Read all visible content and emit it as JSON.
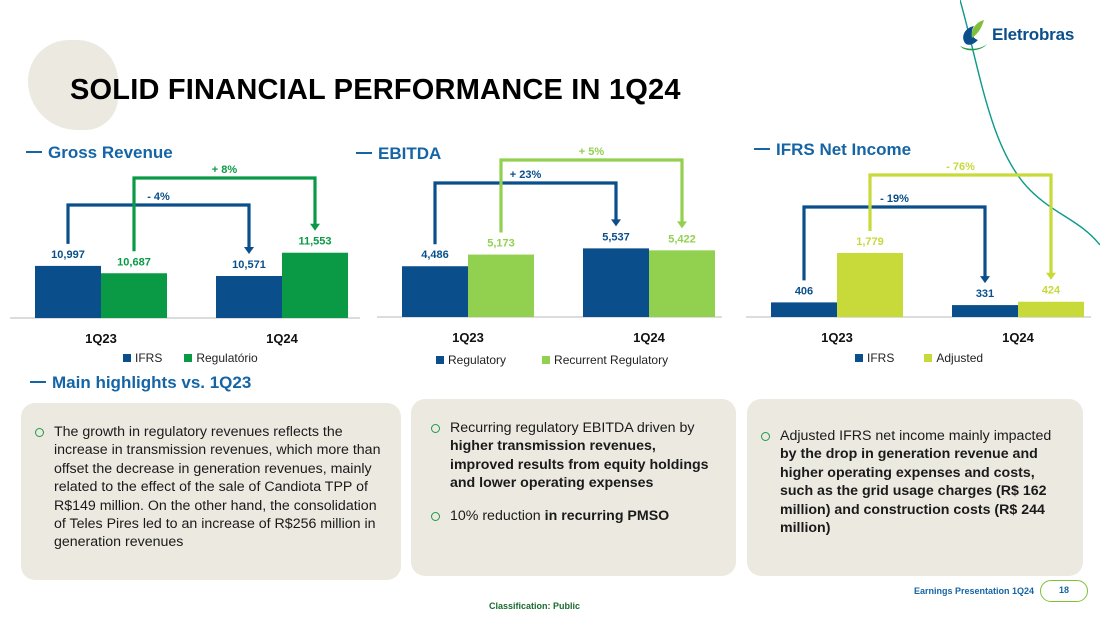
{
  "brand": {
    "name": "Eletrobras"
  },
  "title": "SOLID FINANCIAL PERFORMANCE IN 1Q24",
  "sections": {
    "gross": "Gross Revenue",
    "ebitda": "EBITDA",
    "income": "IFRS Net Income",
    "highlights": "Main highlights vs. 1Q23"
  },
  "chart_data": [
    {
      "type": "bar",
      "categories": [
        "1Q23",
        "1Q24"
      ],
      "series": [
        {
          "name": "IFRS",
          "values": [
            10997,
            10571
          ],
          "labels": [
            "10,997",
            "10,571"
          ],
          "color": "#0a4f8c"
        },
        {
          "name": "Regulatório",
          "values": [
            10687,
            11553
          ],
          "labels": [
            "10,687",
            "11,553"
          ],
          "color": "#0a9a46"
        }
      ],
      "ylim": [
        8800,
        12300
      ],
      "annotations": [
        {
          "text": "- 4%",
          "series": 0,
          "color": "#0a4f8c"
        },
        {
          "text": "+ 8%",
          "series": 1,
          "color": "#0a9a46"
        }
      ]
    },
    {
      "type": "bar",
      "categories": [
        "1Q23",
        "1Q24"
      ],
      "series": [
        {
          "name": "Regulatory",
          "values": [
            4486,
            5537
          ],
          "labels": [
            "4,486",
            "5,537"
          ],
          "color": "#0a4f8c"
        },
        {
          "name": "Recurrent Regulatory",
          "values": [
            5173,
            5422
          ],
          "labels": [
            "5,173",
            "5,422"
          ],
          "color": "#92d050"
        }
      ],
      "ylim": [
        1500,
        6500
      ],
      "annotations": [
        {
          "text": "+ 23%",
          "series": 0,
          "color": "#0a4f8c"
        },
        {
          "text": "+ 5%",
          "series": 1,
          "color": "#92d050"
        }
      ]
    },
    {
      "type": "bar",
      "categories": [
        "1Q23",
        "1Q24"
      ],
      "series": [
        {
          "name": "IFRS",
          "values": [
            406,
            331
          ],
          "labels": [
            "406",
            "331"
          ],
          "color": "#0a4f8c"
        },
        {
          "name": "Adjusted",
          "values": [
            1779,
            424
          ],
          "labels": [
            "1,779",
            "424"
          ],
          "color": "#c8d93a"
        }
      ],
      "ylim": [
        0,
        2500
      ],
      "annotations": [
        {
          "text": "- 19%",
          "series": 0,
          "color": "#0a4f8c"
        },
        {
          "text": "- 76%",
          "series": 1,
          "color": "#c8d93a"
        }
      ]
    }
  ],
  "highlights": {
    "card1": {
      "b1": "The growth in regulatory revenues reflects the increase in transmission revenues, which more than offset the decrease in generation revenues, mainly related to the effect of the sale of Candiota TPP of R$149 million. On the other hand, the consolidation of Teles Pires led to an increase of R$256 million in generation revenues"
    },
    "card2": {
      "b1_plain": "Recurring regulatory EBITDA driven by ",
      "b1_bold": "higher transmission revenues, improved results from equity holdings and lower operating expenses",
      "b2_plain": "10% reduction ",
      "b2_bold": "in recurring PMSO"
    },
    "card3": {
      "b1_plain": "Adjusted IFRS net income mainly impacted ",
      "b1_bold": "by the drop in generation revenue and higher operating expenses and costs, such as the grid usage charges (R$ 162 million) and construction costs (R$ 244 million)"
    }
  },
  "footer": {
    "classification": "Classification: Public",
    "presentation": "Earnings Presentation 1Q24",
    "page": "18"
  }
}
